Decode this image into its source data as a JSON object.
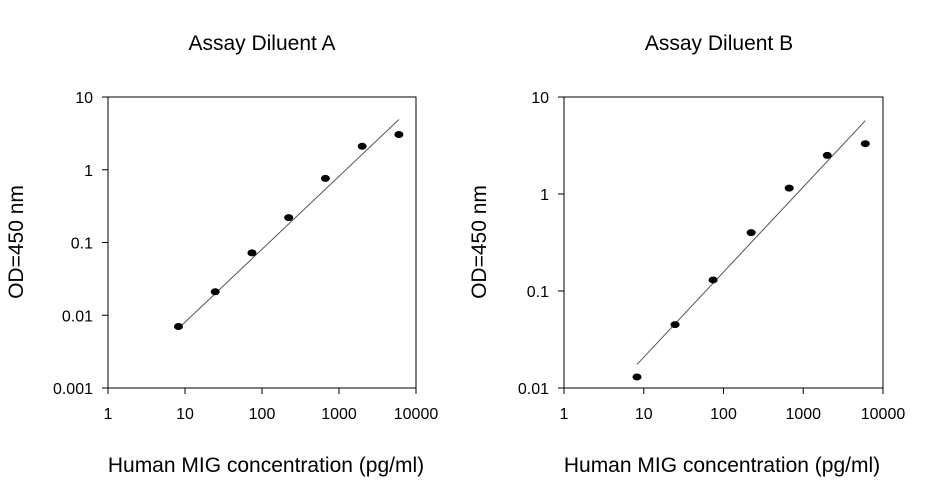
{
  "chart_data": [
    {
      "type": "scatter",
      "title": "Assay Diluent A",
      "xlabel": "Human MIG concentration (pg/ml)",
      "ylabel": "OD=450 nm",
      "x_scale": "log",
      "y_scale": "log",
      "xlim": [
        1,
        10000
      ],
      "ylim": [
        0.001,
        10
      ],
      "x_ticks": [
        "1",
        "10",
        "100",
        "1000",
        "10000"
      ],
      "y_ticks": [
        "0.001",
        "0.01",
        "0.1",
        "1",
        "10"
      ],
      "grid": false,
      "series": [
        {
          "x": [
            8.23,
            24.69,
            74.07,
            222.2,
            666.7,
            2000,
            6000
          ],
          "y": [
            0.007,
            0.021,
            0.072,
            0.22,
            0.76,
            2.1,
            3.05
          ]
        }
      ],
      "fit_line": {
        "x": [
          8.23,
          6000
        ],
        "y": [
          0.0066,
          4.9
        ]
      }
    },
    {
      "type": "scatter",
      "title": "Assay Diluent B",
      "xlabel": "Human MIG concentration (pg/ml)",
      "ylabel": "OD=450 nm",
      "x_scale": "log",
      "y_scale": "log",
      "xlim": [
        1,
        10000
      ],
      "ylim": [
        0.01,
        10
      ],
      "x_ticks": [
        "1",
        "10",
        "100",
        "1000",
        "10000"
      ],
      "y_ticks": [
        "0.01",
        "0.1",
        "1",
        "10"
      ],
      "grid": false,
      "series": [
        {
          "x": [
            8.23,
            24.69,
            74.07,
            222.2,
            666.7,
            2000,
            6000
          ],
          "y": [
            0.013,
            0.045,
            0.13,
            0.4,
            1.15,
            2.5,
            3.3
          ]
        }
      ],
      "fit_line": {
        "x": [
          8.23,
          6000
        ],
        "y": [
          0.0175,
          5.7
        ]
      }
    }
  ]
}
